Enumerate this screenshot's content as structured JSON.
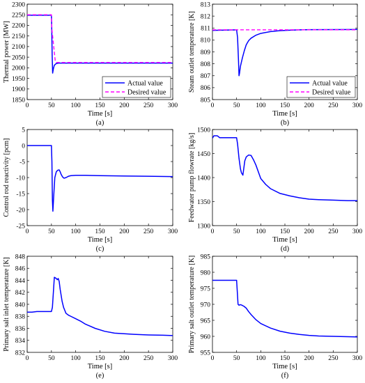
{
  "chart_data": [
    {
      "type": "line",
      "panel_label": "(a)",
      "xlabel": "Time [s]",
      "ylabel": "Thermal power [MW]",
      "xlim": [
        0,
        300
      ],
      "ylim": [
        1850,
        2300
      ],
      "xticks": [
        0,
        50,
        100,
        150,
        200,
        250,
        300
      ],
      "yticks": [
        1850,
        1900,
        1950,
        2000,
        2050,
        2100,
        2150,
        2200,
        2250,
        2300
      ],
      "legend_position": "bottom-right",
      "series": [
        {
          "name": "Actual value",
          "color": "#0000ff",
          "style": "solid",
          "x": [
            0,
            50,
            50.5,
            51.5,
            52.5,
            54,
            56,
            60,
            65,
            70,
            80,
            100,
            300
          ],
          "y": [
            2248,
            2248,
            2200,
            2060,
            1975,
            1995,
            2012,
            2020,
            2022,
            2022,
            2022,
            2022,
            2022
          ]
        },
        {
          "name": "Desired value",
          "color": "#ff00ff",
          "style": "dashed",
          "x": [
            0,
            50,
            51,
            58,
            60,
            300
          ],
          "y": [
            2250,
            2250,
            2180,
            2030,
            2025,
            2025
          ]
        }
      ]
    },
    {
      "type": "line",
      "panel_label": "(b)",
      "xlabel": "Time [s]",
      "ylabel": "Steam outlet temperature [K]",
      "xlim": [
        0,
        300
      ],
      "ylim": [
        805,
        813
      ],
      "xticks": [
        0,
        50,
        100,
        150,
        200,
        250,
        300
      ],
      "yticks": [
        805,
        806,
        807,
        808,
        809,
        810,
        811,
        812,
        813
      ],
      "legend_position": "bottom-right",
      "series": [
        {
          "name": "Actual value",
          "color": "#0000ff",
          "style": "solid",
          "x": [
            0,
            50,
            52,
            54,
            55,
            56,
            58,
            62,
            66,
            70,
            75,
            80,
            90,
            100,
            120,
            140,
            160,
            180,
            200,
            250,
            300
          ],
          "y": [
            810.8,
            810.85,
            810.2,
            808.2,
            807.0,
            807.2,
            807.8,
            808.5,
            809.1,
            809.6,
            809.95,
            810.15,
            810.4,
            810.55,
            810.7,
            810.78,
            810.82,
            810.85,
            810.86,
            810.87,
            810.88
          ]
        },
        {
          "name": "Desired value",
          "color": "#ff00ff",
          "style": "dashed",
          "x": [
            0,
            300
          ],
          "y": [
            810.85,
            810.85
          ]
        }
      ]
    },
    {
      "type": "line",
      "panel_label": "(c)",
      "xlabel": "Time [s]",
      "ylabel": "Control rod reactivity [pcm]",
      "xlim": [
        0,
        300
      ],
      "ylim": [
        -25,
        5
      ],
      "xticks": [
        0,
        50,
        100,
        150,
        200,
        250,
        300
      ],
      "yticks": [
        -25,
        -20,
        -15,
        -10,
        -5,
        0,
        5
      ],
      "series": [
        {
          "color": "#0000ff",
          "style": "solid",
          "x": [
            0,
            50,
            51,
            52,
            53,
            55,
            57,
            60,
            63,
            66,
            68,
            70,
            73,
            76,
            80,
            85,
            90,
            100,
            120,
            150,
            200,
            250,
            300
          ],
          "y": [
            0,
            0,
            -5,
            -17,
            -20.5,
            -15,
            -10,
            -8.2,
            -7.7,
            -7.6,
            -8.2,
            -9.0,
            -9.8,
            -10.2,
            -10.0,
            -9.6,
            -9.4,
            -9.3,
            -9.3,
            -9.4,
            -9.5,
            -9.6,
            -9.7
          ]
        }
      ]
    },
    {
      "type": "line",
      "panel_label": "(d)",
      "xlabel": "Time [s]",
      "ylabel": "Feedwater pump flowrate [kg/s]",
      "xlim": [
        0,
        300
      ],
      "ylim": [
        1300,
        1500
      ],
      "xticks": [
        0,
        50,
        100,
        150,
        200,
        250,
        300
      ],
      "yticks": [
        1300,
        1350,
        1400,
        1450,
        1500
      ],
      "series": [
        {
          "color": "#0000ff",
          "style": "solid",
          "x": [
            0,
            3,
            6,
            10,
            15,
            20,
            30,
            40,
            50,
            52,
            55,
            58,
            60,
            63,
            65,
            67,
            70,
            75,
            80,
            85,
            90,
            95,
            100,
            110,
            120,
            140,
            160,
            180,
            200,
            220,
            250,
            280,
            300
          ],
          "y": [
            1482,
            1487,
            1487,
            1487,
            1483,
            1483,
            1483,
            1483,
            1483,
            1470,
            1440,
            1418,
            1410,
            1405,
            1420,
            1435,
            1443,
            1447,
            1446,
            1437,
            1426,
            1412,
            1398,
            1386,
            1377,
            1367,
            1362,
            1358,
            1355,
            1354,
            1353,
            1352,
            1352
          ]
        }
      ]
    },
    {
      "type": "line",
      "panel_label": "(e)",
      "xlabel": "Time [s]",
      "ylabel": "Primary salt inlet temperature [K]",
      "xlim": [
        0,
        300
      ],
      "ylim": [
        832,
        848
      ],
      "xticks": [
        0,
        50,
        100,
        150,
        200,
        250,
        300
      ],
      "yticks": [
        832,
        834,
        836,
        838,
        840,
        842,
        844,
        846,
        848
      ],
      "series": [
        {
          "color": "#0000ff",
          "style": "solid",
          "x": [
            0,
            10,
            20,
            30,
            40,
            50,
            52,
            54,
            56,
            58,
            60,
            62,
            64,
            66,
            68,
            70,
            72,
            75,
            78,
            80,
            85,
            90,
            100,
            110,
            120,
            140,
            160,
            180,
            200,
            220,
            250,
            280,
            300
          ],
          "y": [
            838.7,
            838.7,
            838.8,
            838.8,
            838.8,
            838.8,
            839.5,
            842.0,
            844.5,
            844.4,
            844.3,
            844.1,
            844.3,
            843.8,
            842.5,
            841.5,
            840.5,
            839.5,
            838.9,
            838.5,
            838.2,
            838.0,
            837.6,
            837.2,
            836.7,
            836.0,
            835.5,
            835.2,
            835.1,
            835.0,
            834.9,
            834.85,
            834.8
          ]
        }
      ]
    },
    {
      "type": "line",
      "panel_label": "(f)",
      "xlabel": "Time [s]",
      "ylabel": "Primary salt outlet temperature [K]",
      "xlim": [
        0,
        300
      ],
      "ylim": [
        955,
        985
      ],
      "xticks": [
        0,
        50,
        100,
        150,
        200,
        250,
        300
      ],
      "yticks": [
        955,
        960,
        965,
        970,
        975,
        980,
        985
      ],
      "series": [
        {
          "color": "#0000ff",
          "style": "solid",
          "x": [
            0,
            50,
            51,
            53,
            55,
            57,
            60,
            65,
            70,
            75,
            80,
            90,
            100,
            120,
            140,
            160,
            180,
            200,
            220,
            250,
            280,
            300
          ],
          "y": [
            977.5,
            977.5,
            975.0,
            970.0,
            969.7,
            969.9,
            969.8,
            969.4,
            968.8,
            967.7,
            966.8,
            965.2,
            964.0,
            962.6,
            961.6,
            961.0,
            960.6,
            960.3,
            960.1,
            960.0,
            959.9,
            959.8
          ]
        }
      ]
    }
  ]
}
